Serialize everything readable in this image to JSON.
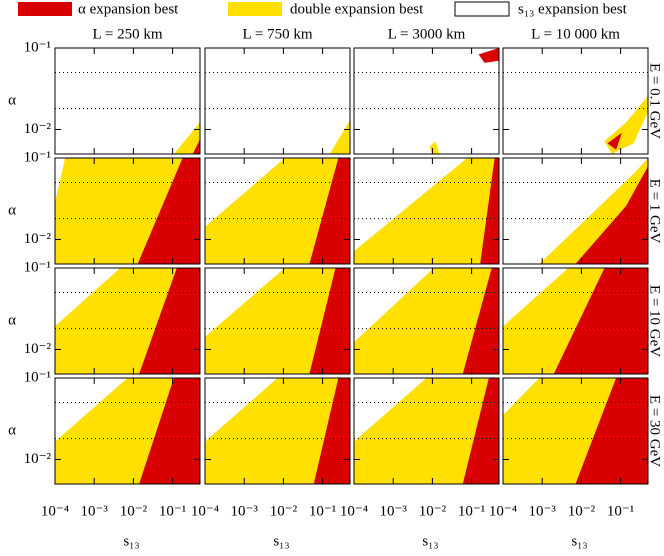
{
  "chart_data": {
    "type": "region-grid",
    "legend": [
      {
        "name": "α expansion best",
        "color": "#d80000"
      },
      {
        "name": "double expansion best",
        "color": "#ffe000"
      },
      {
        "name": "s₁₃ expansion best",
        "color": "#ffffff"
      }
    ],
    "column_titles": [
      "L = 250 km",
      "L = 750 km",
      "L = 3000 km",
      "L = 10 000 km"
    ],
    "row_titles": [
      "E = 0.1 GeV",
      "E = 1 GeV",
      "E = 10 GeV",
      "E = 30 GeV"
    ],
    "xlabel": "s₁₃",
    "ylabel": "α",
    "log_x": true,
    "log_y": true,
    "xlim": [
      0.0001,
      0.5
    ],
    "ylim": [
      0.005,
      0.1
    ],
    "xticks": [
      {
        "value": 0.0001,
        "label": "10⁻⁴"
      },
      {
        "value": 0.001,
        "label": "10⁻³"
      },
      {
        "value": 0.01,
        "label": "10⁻²"
      },
      {
        "value": 0.1,
        "label": "10⁻¹"
      }
    ],
    "yticks": [
      {
        "value": 0.01,
        "label": "10⁻²"
      },
      {
        "value": 0.1,
        "label": "10⁻¹"
      }
    ],
    "reference_lines": [
      0.05,
      0.018
    ]
  }
}
